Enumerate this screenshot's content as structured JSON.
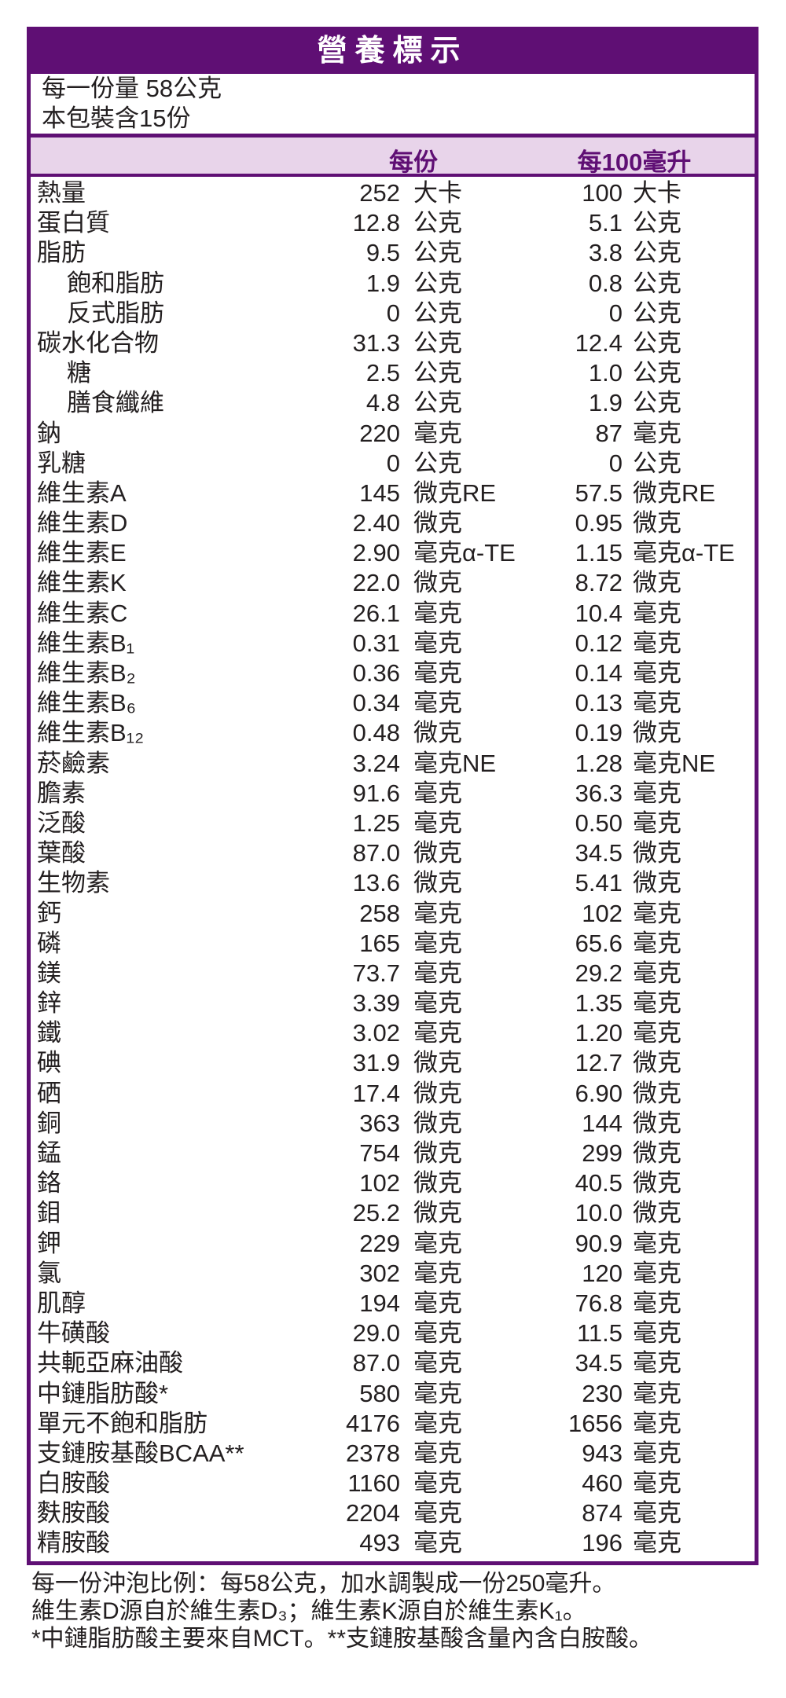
{
  "title": "營養標示",
  "serving": {
    "size": "每一份量 58公克",
    "count": "本包裝含15份"
  },
  "columns": {
    "per_serving": "每份",
    "per_100ml": "每100毫升"
  },
  "colors": {
    "brand": "#5f0f74",
    "header_bg": "#e8d4ea"
  },
  "rows": [
    {
      "label": "熱量",
      "indent": false,
      "v1": "252",
      "u1": "大卡",
      "v2": "100",
      "u2": "大卡"
    },
    {
      "label": "蛋白質",
      "indent": false,
      "v1": "12.8",
      "u1": "公克",
      "v2": "5.1",
      "u2": "公克"
    },
    {
      "label": "脂肪",
      "indent": false,
      "v1": "9.5",
      "u1": "公克",
      "v2": "3.8",
      "u2": "公克"
    },
    {
      "label": "飽和脂肪",
      "indent": true,
      "v1": "1.9",
      "u1": "公克",
      "v2": "0.8",
      "u2": "公克"
    },
    {
      "label": "反式脂肪",
      "indent": true,
      "v1": "0",
      "u1": "公克",
      "v2": "0",
      "u2": "公克"
    },
    {
      "label": "碳水化合物",
      "indent": false,
      "v1": "31.3",
      "u1": "公克",
      "v2": "12.4",
      "u2": "公克"
    },
    {
      "label": "糖",
      "indent": true,
      "v1": "2.5",
      "u1": "公克",
      "v2": "1.0",
      "u2": "公克"
    },
    {
      "label": "膳食纖維",
      "indent": true,
      "v1": "4.8",
      "u1": "公克",
      "v2": "1.9",
      "u2": "公克"
    },
    {
      "label": "鈉",
      "indent": false,
      "v1": "220",
      "u1": "毫克",
      "v2": "87",
      "u2": "毫克"
    },
    {
      "label": "乳糖",
      "indent": false,
      "v1": "0",
      "u1": "公克",
      "v2": "0",
      "u2": "公克"
    },
    {
      "label": "維生素A",
      "indent": false,
      "v1": "145",
      "u1": "微克RE",
      "v2": "57.5",
      "u2": "微克RE"
    },
    {
      "label": "維生素D",
      "indent": false,
      "v1": "2.40",
      "u1": "微克",
      "v2": "0.95",
      "u2": "微克"
    },
    {
      "label": "維生素E",
      "indent": false,
      "v1": "2.90",
      "u1": "毫克α-TE",
      "v2": "1.15",
      "u2": "毫克α-TE"
    },
    {
      "label": "維生素K",
      "indent": false,
      "v1": "22.0",
      "u1": "微克",
      "v2": "8.72",
      "u2": "微克"
    },
    {
      "label": "維生素C",
      "indent": false,
      "v1": "26.1",
      "u1": "毫克",
      "v2": "10.4",
      "u2": "毫克"
    },
    {
      "label": "維生素B₁",
      "indent": false,
      "v1": "0.31",
      "u1": "毫克",
      "v2": "0.12",
      "u2": "毫克"
    },
    {
      "label": "維生素B₂",
      "indent": false,
      "v1": "0.36",
      "u1": "毫克",
      "v2": "0.14",
      "u2": "毫克"
    },
    {
      "label": "維生素B₆",
      "indent": false,
      "v1": "0.34",
      "u1": "毫克",
      "v2": "0.13",
      "u2": "毫克"
    },
    {
      "label": "維生素B₁₂",
      "indent": false,
      "v1": "0.48",
      "u1": "微克",
      "v2": "0.19",
      "u2": "微克"
    },
    {
      "label": "菸鹼素",
      "indent": false,
      "v1": "3.24",
      "u1": "毫克NE",
      "v2": "1.28",
      "u2": "毫克NE"
    },
    {
      "label": "膽素",
      "indent": false,
      "v1": "91.6",
      "u1": "毫克",
      "v2": "36.3",
      "u2": "毫克"
    },
    {
      "label": "泛酸",
      "indent": false,
      "v1": "1.25",
      "u1": "毫克",
      "v2": "0.50",
      "u2": "毫克"
    },
    {
      "label": "葉酸",
      "indent": false,
      "v1": "87.0",
      "u1": "微克",
      "v2": "34.5",
      "u2": "微克"
    },
    {
      "label": "生物素",
      "indent": false,
      "v1": "13.6",
      "u1": "微克",
      "v2": "5.41",
      "u2": "微克"
    },
    {
      "label": "鈣",
      "indent": false,
      "v1": "258",
      "u1": "毫克",
      "v2": "102",
      "u2": "毫克"
    },
    {
      "label": "磷",
      "indent": false,
      "v1": "165",
      "u1": "毫克",
      "v2": "65.6",
      "u2": "毫克"
    },
    {
      "label": "鎂",
      "indent": false,
      "v1": "73.7",
      "u1": "毫克",
      "v2": "29.2",
      "u2": "毫克"
    },
    {
      "label": "鋅",
      "indent": false,
      "v1": "3.39",
      "u1": "毫克",
      "v2": "1.35",
      "u2": "毫克"
    },
    {
      "label": "鐵",
      "indent": false,
      "v1": "3.02",
      "u1": "毫克",
      "v2": "1.20",
      "u2": "毫克"
    },
    {
      "label": "碘",
      "indent": false,
      "v1": "31.9",
      "u1": "微克",
      "v2": "12.7",
      "u2": "微克"
    },
    {
      "label": "硒",
      "indent": false,
      "v1": "17.4",
      "u1": "微克",
      "v2": "6.90",
      "u2": "微克"
    },
    {
      "label": "銅",
      "indent": false,
      "v1": "363",
      "u1": "微克",
      "v2": "144",
      "u2": "微克"
    },
    {
      "label": "錳",
      "indent": false,
      "v1": "754",
      "u1": "微克",
      "v2": "299",
      "u2": "微克"
    },
    {
      "label": "鉻",
      "indent": false,
      "v1": "102",
      "u1": "微克",
      "v2": "40.5",
      "u2": "微克"
    },
    {
      "label": "鉬",
      "indent": false,
      "v1": "25.2",
      "u1": "微克",
      "v2": "10.0",
      "u2": "微克"
    },
    {
      "label": "鉀",
      "indent": false,
      "v1": "229",
      "u1": "毫克",
      "v2": "90.9",
      "u2": "毫克"
    },
    {
      "label": "氯",
      "indent": false,
      "v1": "302",
      "u1": "毫克",
      "v2": "120",
      "u2": "毫克"
    },
    {
      "label": "肌醇",
      "indent": false,
      "v1": "194",
      "u1": "毫克",
      "v2": "76.8",
      "u2": "毫克"
    },
    {
      "label": "牛磺酸",
      "indent": false,
      "v1": "29.0",
      "u1": "毫克",
      "v2": "11.5",
      "u2": "毫克"
    },
    {
      "label": "共軛亞麻油酸",
      "indent": false,
      "v1": "87.0",
      "u1": "毫克",
      "v2": "34.5",
      "u2": "毫克"
    },
    {
      "label": "中鏈脂肪酸*",
      "indent": false,
      "v1": "580",
      "u1": "毫克",
      "v2": "230",
      "u2": "毫克"
    },
    {
      "label": "單元不飽和脂肪",
      "indent": false,
      "v1": "4176",
      "u1": "毫克",
      "v2": "1656",
      "u2": "毫克"
    },
    {
      "label": "支鏈胺基酸BCAA**",
      "indent": false,
      "v1": "2378",
      "u1": "毫克",
      "v2": "943",
      "u2": "毫克"
    },
    {
      "label": "白胺酸",
      "indent": false,
      "v1": "1160",
      "u1": "毫克",
      "v2": "460",
      "u2": "毫克"
    },
    {
      "label": "麩胺酸",
      "indent": false,
      "v1": "2204",
      "u1": "毫克",
      "v2": "874",
      "u2": "毫克"
    },
    {
      "label": "精胺酸",
      "indent": false,
      "v1": "493",
      "u1": "毫克",
      "v2": "196",
      "u2": "毫克"
    }
  ],
  "footer": [
    "每一份沖泡比例：每58公克，加水調製成一份250毫升。",
    "維生素D源自於維生素D₃；維生素K源自於維生素K₁。",
    "*中鏈脂肪酸主要來自MCT。**支鏈胺基酸含量內含白胺酸。"
  ]
}
